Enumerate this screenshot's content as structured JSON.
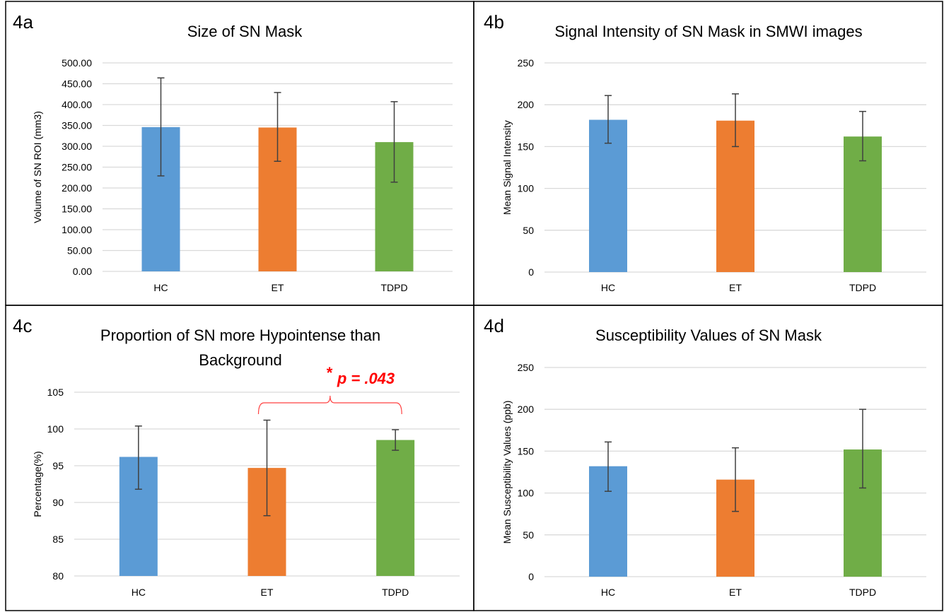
{
  "colors": {
    "HC": "#5b9bd5",
    "ET": "#ed7d31",
    "TDPD": "#70ad47",
    "grid": "#d9d9d9",
    "error_bar": "#404040",
    "annotation": "#ff0000"
  },
  "chart_data": [
    {
      "panel": "4a",
      "type": "bar",
      "title": "Size of SN Mask",
      "xlabel": "",
      "ylabel": "Volume of SN ROI (mm3)",
      "categories": [
        "HC",
        "ET",
        "TDPD"
      ],
      "values": [
        346,
        345,
        310
      ],
      "error_upper": [
        464,
        429,
        407
      ],
      "error_lower": [
        229,
        264,
        214
      ],
      "ylim": [
        0,
        500
      ],
      "yticks": [
        "0.00",
        "50.00",
        "100.00",
        "150.00",
        "200.00",
        "250.00",
        "300.00",
        "350.00",
        "400.00",
        "450.00",
        "500.00"
      ],
      "grid": true
    },
    {
      "panel": "4b",
      "type": "bar",
      "title": "Signal Intensity of SN Mask in SMWI images",
      "xlabel": "",
      "ylabel": "Mean Signal Intensity",
      "categories": [
        "HC",
        "ET",
        "TDPD"
      ],
      "values": [
        182,
        181,
        162
      ],
      "error_upper": [
        211,
        213,
        192
      ],
      "error_lower": [
        154,
        150,
        133
      ],
      "ylim": [
        0,
        250
      ],
      "yticks": [
        "0",
        "50",
        "100",
        "150",
        "200",
        "250"
      ],
      "grid": true
    },
    {
      "panel": "4c",
      "type": "bar",
      "title": "Proportion of SN more Hypointense than",
      "title2": "Background",
      "xlabel": "",
      "ylabel": "Percentage(%)",
      "categories": [
        "HC",
        "ET",
        "TDPD"
      ],
      "values": [
        96.2,
        94.7,
        98.5
      ],
      "error_upper": [
        100.4,
        101.2,
        99.9
      ],
      "error_lower": [
        91.8,
        88.2,
        97.1
      ],
      "ylim": [
        80,
        105
      ],
      "yticks": [
        "80",
        "85",
        "90",
        "95",
        "100",
        "105"
      ],
      "grid": true,
      "annotation": {
        "star": "*",
        "text": "p = .043",
        "between": [
          "ET",
          "TDPD"
        ]
      }
    },
    {
      "panel": "4d",
      "type": "bar",
      "title": "Susceptibility Values of SN Mask",
      "xlabel": "",
      "ylabel": "Mean Susceptibility Values (ppb)",
      "categories": [
        "HC",
        "ET",
        "TDPD"
      ],
      "values": [
        132,
        116,
        152
      ],
      "error_upper": [
        161,
        154,
        200
      ],
      "error_lower": [
        102,
        78,
        106
      ],
      "ylim": [
        0,
        250
      ],
      "yticks": [
        "0",
        "50",
        "100",
        "150",
        "200",
        "250"
      ],
      "grid": true
    }
  ]
}
